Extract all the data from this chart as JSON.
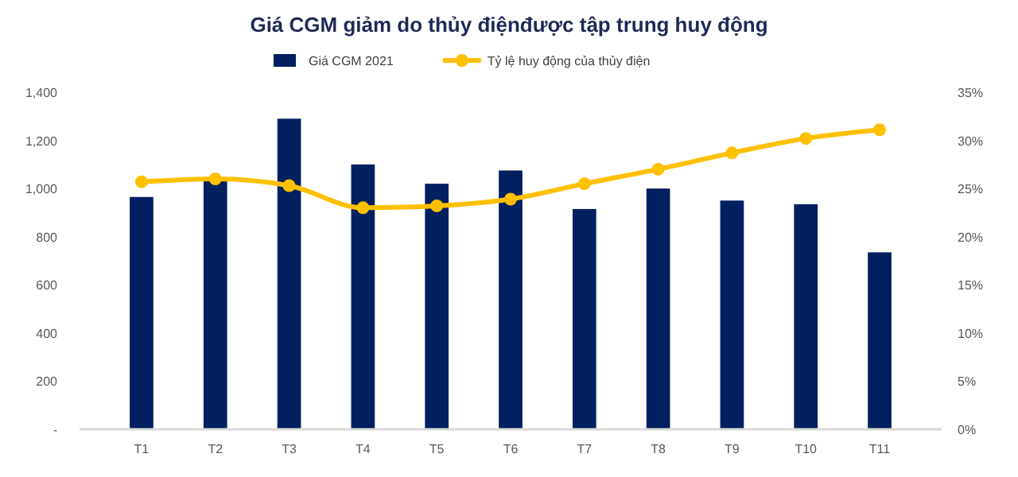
{
  "chart_data": {
    "type": "bar",
    "title": "Giá CGM giảm do thủy điệnđược tập trung huy động",
    "categories": [
      "T1",
      "T2",
      "T3",
      "T4",
      "T5",
      "T6",
      "T7",
      "T8",
      "T9",
      "T10",
      "T11"
    ],
    "series": [
      {
        "name": "Giá CGM 2021",
        "color": "#002060",
        "values": [
          965,
          1045,
          1290,
          1100,
          1020,
          1075,
          915,
          1000,
          950,
          935,
          735
        ]
      },
      {
        "name": "Tỷ lệ huy động của thủy điện",
        "type": "line",
        "axis": "y2",
        "color": "#ffc000",
        "values": [
          25.7,
          26.0,
          25.3,
          23.0,
          23.2,
          23.9,
          25.5,
          27.0,
          28.7,
          30.2,
          31.1
        ]
      }
    ],
    "ylim": [
      0,
      1400
    ],
    "yticks": [
      {
        "value": 0,
        "label": "-"
      },
      {
        "value": 200,
        "label": "200"
      },
      {
        "value": 400,
        "label": "400"
      },
      {
        "value": 600,
        "label": "600"
      },
      {
        "value": 800,
        "label": "800"
      },
      {
        "value": 1000,
        "label": "1,000"
      },
      {
        "value": 1200,
        "label": "1,200"
      },
      {
        "value": 1400,
        "label": "1,400"
      }
    ],
    "y2lim": [
      0,
      35
    ],
    "y2ticks": [
      {
        "value": 0,
        "label": "0%"
      },
      {
        "value": 5,
        "label": "5%"
      },
      {
        "value": 10,
        "label": "10%"
      },
      {
        "value": 15,
        "label": "15%"
      },
      {
        "value": 20,
        "label": "20%"
      },
      {
        "value": 25,
        "label": "25%"
      },
      {
        "value": 30,
        "label": "30%"
      },
      {
        "value": 35,
        "label": "35%"
      }
    ],
    "grid": false,
    "legend": "top",
    "marker": "circle"
  }
}
